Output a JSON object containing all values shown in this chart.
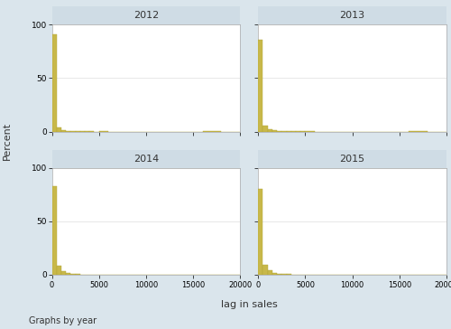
{
  "years": [
    "2012",
    "2013",
    "2014",
    "2015"
  ],
  "bar_color": "#c8b84a",
  "bar_edge_color": "#b0a535",
  "background_outer": "#dae5ec",
  "background_panel": "#ffffff",
  "title_band_color": "#cfdce5",
  "xlim": [
    0,
    20000
  ],
  "ylim": [
    0,
    100
  ],
  "xticks": [
    0,
    5000,
    10000,
    15000,
    20000
  ],
  "yticks": [
    0,
    50,
    100
  ],
  "xlabel": "lag in sales",
  "ylabel": "Percent",
  "footer": "Graphs by year",
  "hist_data": {
    "2012": {
      "bin_edges": [
        0,
        500,
        1000,
        1500,
        2000,
        2500,
        3000,
        3500,
        4000,
        4500,
        5000,
        6000,
        7000,
        8000,
        9000,
        10000,
        12000,
        14000,
        16000,
        18000,
        20000
      ],
      "heights": [
        91,
        4.0,
        1.5,
        0.8,
        0.5,
        0.3,
        0.2,
        0.15,
        0.1,
        0.08,
        0.1,
        0.08,
        0.05,
        0.04,
        0.03,
        0.03,
        0.02,
        0.02,
        0.3,
        0.0
      ]
    },
    "2013": {
      "bin_edges": [
        0,
        500,
        1000,
        1500,
        2000,
        2500,
        3000,
        3500,
        4000,
        4500,
        5000,
        6000,
        7000,
        8000,
        9000,
        10000,
        12000,
        14000,
        16000,
        18000,
        20000
      ],
      "heights": [
        86,
        6.0,
        2.5,
        1.2,
        0.7,
        0.4,
        0.3,
        0.2,
        0.15,
        0.1,
        0.12,
        0.08,
        0.06,
        0.04,
        0.03,
        0.03,
        0.02,
        0.02,
        0.3,
        0.0
      ]
    },
    "2014": {
      "bin_edges": [
        0,
        500,
        1000,
        1500,
        2000,
        2500,
        3000,
        3500,
        4000,
        4500,
        5000,
        6000,
        7000,
        8000,
        9000,
        10000,
        12000,
        14000,
        16000,
        18000,
        20000
      ],
      "heights": [
        83,
        8.0,
        3.0,
        1.5,
        0.8,
        0.5,
        0.3,
        0.2,
        0.15,
        0.1,
        0.12,
        0.08,
        0.06,
        0.04,
        0.03,
        0.03,
        0.02,
        0.02,
        0.0,
        0.0
      ]
    },
    "2015": {
      "bin_edges": [
        0,
        500,
        1000,
        1500,
        2000,
        2500,
        3000,
        3500,
        4000,
        4500,
        5000,
        6000,
        7000,
        8000,
        9000,
        10000,
        12000,
        14000,
        16000,
        18000,
        20000
      ],
      "heights": [
        80,
        9.0,
        4.0,
        2.0,
        1.0,
        0.6,
        0.4,
        0.25,
        0.18,
        0.12,
        0.15,
        0.1,
        0.07,
        0.05,
        0.04,
        0.03,
        0.02,
        0.02,
        0.3,
        0.0
      ]
    }
  }
}
